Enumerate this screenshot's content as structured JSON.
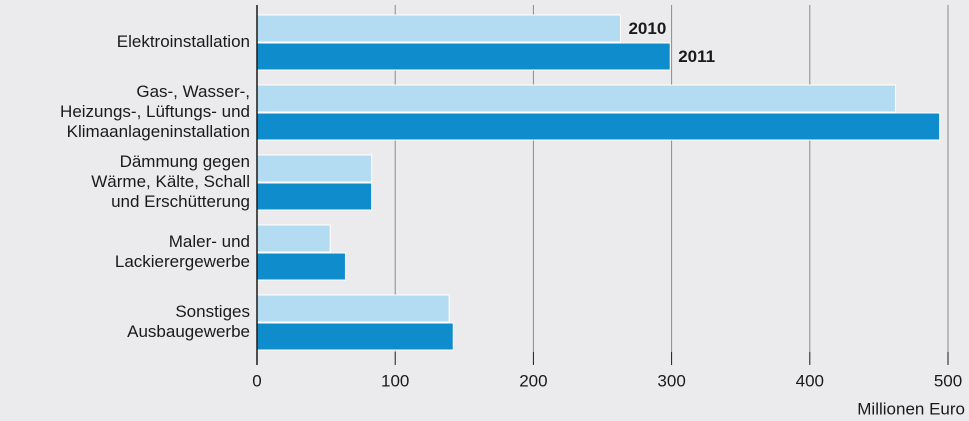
{
  "chart_data": {
    "type": "hbar",
    "categories": [
      "Elektroinstallation",
      "Gas-, Wasser-,\nHeizungs-, Lüftungs- und\nKlimaanlageninstallation",
      "Dämmung gegen\nWärme, Kälte, Schall\nund Erschütterung",
      "Maler- und\nLackierergewerbe",
      "Sonstiges\nAusbaugewerbe"
    ],
    "series": [
      {
        "name": "2010",
        "color": "#b3dcf3",
        "values": [
          263,
          462,
          83,
          53,
          139
        ]
      },
      {
        "name": "2011",
        "color": "#0e8ccc",
        "values": [
          299,
          494,
          83,
          64,
          142
        ]
      }
    ],
    "xlabel": "Millionen Euro",
    "xlim": [
      0,
      500
    ],
    "xticks": [
      0,
      100,
      200,
      300,
      400,
      500
    ],
    "grid": true
  }
}
